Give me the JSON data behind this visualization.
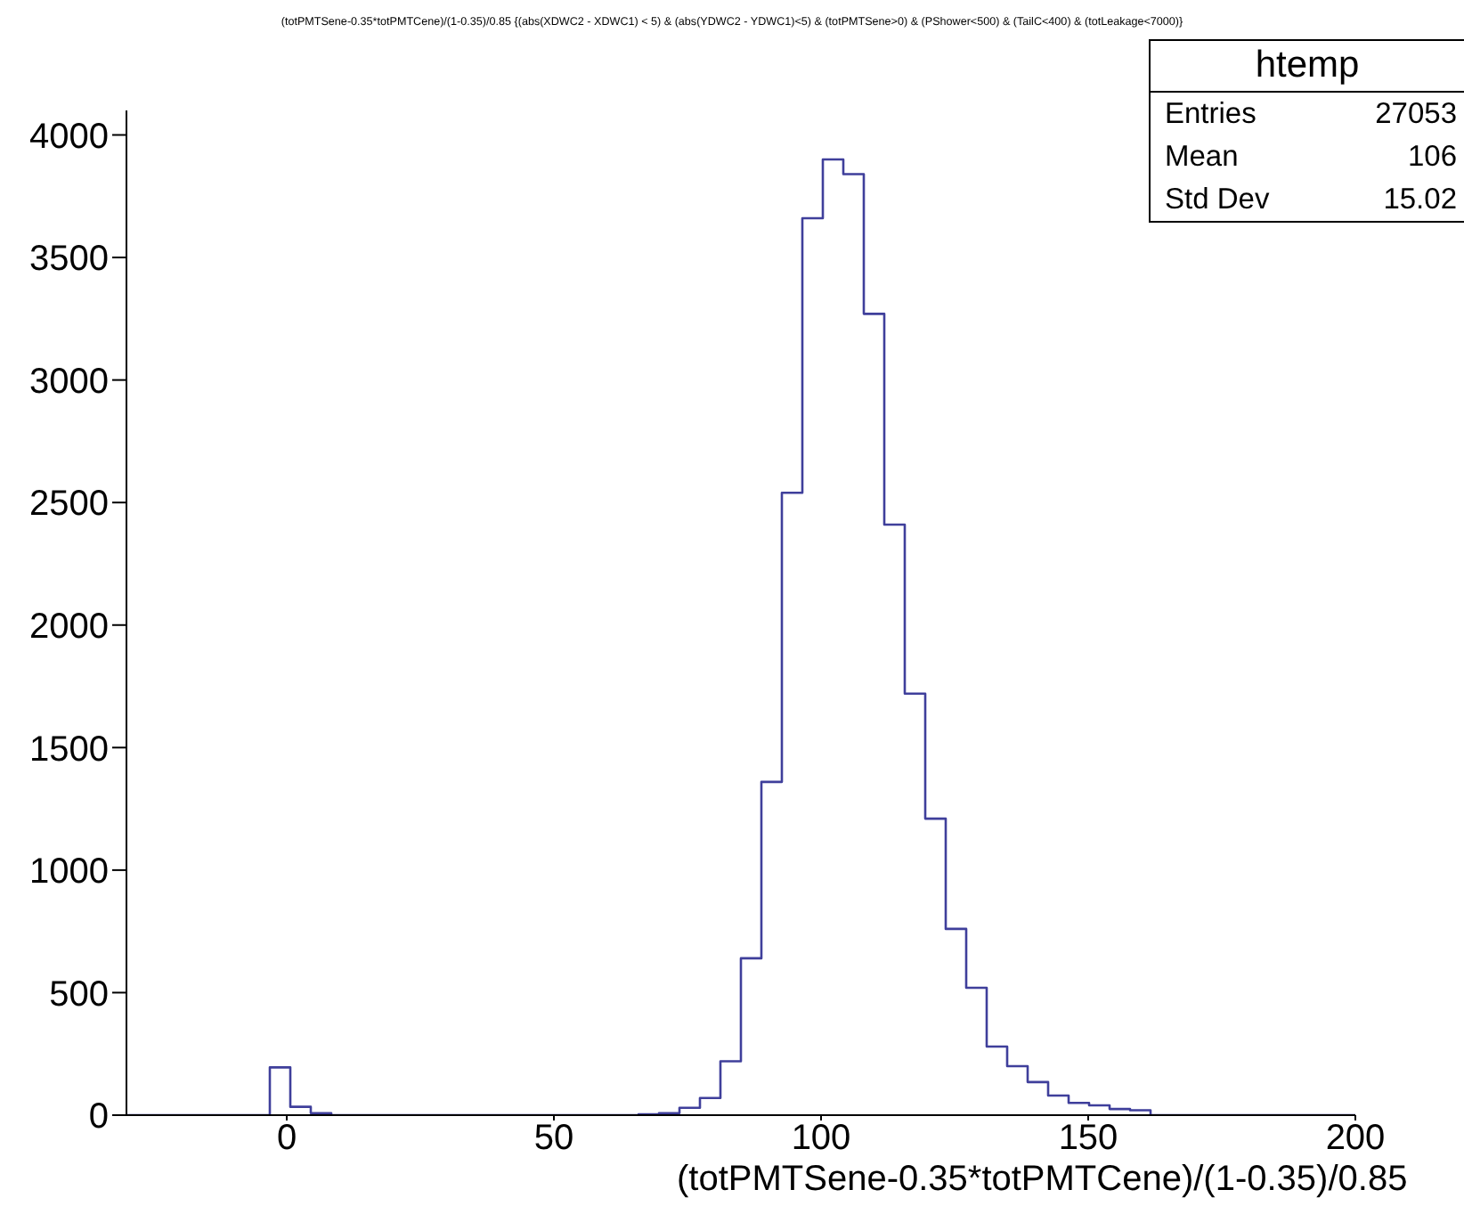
{
  "chart_data": {
    "type": "histogram",
    "title": "(totPMTSene-0.35*totPMTCene)/(1-0.35)/0.85 {(abs(XDWC2 - XDWC1) < 5) & (abs(YDWC2 - YDWC1)<5) & (totPMTSene>0) & (PShower<500) & (TailC<400) & (totLeakage<7000)}",
    "xlabel": "(totPMTSene-0.35*totPMTCene)/(1-0.35)/0.85",
    "bins": [
      -30,
      -26.1667,
      -22.3333,
      -18.5,
      -14.6667,
      -10.8333,
      -7,
      -3.1667,
      0.6667,
      4.5,
      8.3333,
      12.1667,
      16,
      19.8333,
      23.6667,
      27.5,
      31.3333,
      35.1667,
      39,
      42.8333,
      46.6667,
      50.5,
      54.3333,
      58.1667,
      62,
      65.8333,
      69.6667,
      73.5,
      77.3333,
      81.1667,
      85,
      88.8333,
      92.6667,
      96.5,
      100.3333,
      104.1667,
      108,
      111.8333,
      115.6667,
      119.5,
      123.3333,
      127.1667,
      131,
      134.8333,
      138.6667,
      142.5,
      146.3333,
      150.1667,
      154,
      157.8333,
      161.6667,
      165.5,
      169.3333,
      173.1667,
      177,
      180.8333,
      184.6667,
      188.5,
      192.3333,
      196.1667,
      200
    ],
    "values": [
      0,
      0,
      0,
      0,
      0,
      0,
      0,
      195,
      34,
      8,
      0,
      0,
      0,
      0,
      0,
      0,
      0,
      0,
      0,
      0,
      0,
      0,
      0,
      0,
      0,
      3,
      8,
      30,
      70,
      220,
      640,
      1360,
      2540,
      3660,
      3900,
      3840,
      3270,
      2410,
      1720,
      1210,
      760,
      520,
      280,
      200,
      135,
      80,
      50,
      40,
      25,
      20,
      0,
      0,
      0,
      0,
      0,
      0,
      0,
      0,
      0,
      0
    ],
    "color": "#3f3f9b",
    "xlim": [
      -30,
      200
    ],
    "xticks": [
      0,
      50,
      100,
      150,
      200
    ],
    "ylim": [
      0,
      4100
    ],
    "yticks": [
      0,
      500,
      1000,
      1500,
      2000,
      2500,
      3000,
      3500,
      4000
    ],
    "annotations": [
      "htemp",
      "Entries",
      "27053",
      "Mean",
      "106",
      "Std Dev",
      "15.02"
    ]
  }
}
